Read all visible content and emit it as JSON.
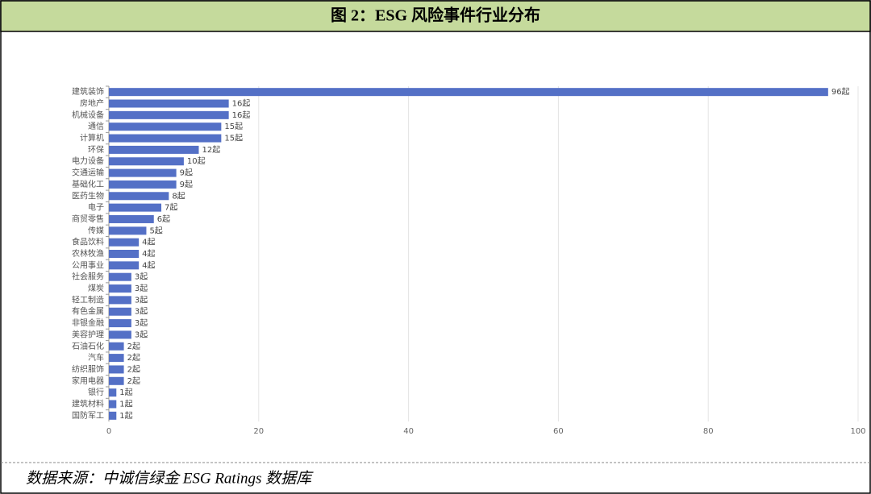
{
  "chart_data": {
    "type": "bar",
    "orientation": "horizontal",
    "title": "图 2：ESG 风险事件行业分布",
    "source": "数据来源：中诚信绿金 ESG Ratings 数据库",
    "categories": [
      "建筑装饰",
      "房地产",
      "机械设备",
      "通信",
      "计算机",
      "环保",
      "电力设备",
      "交通运输",
      "基础化工",
      "医药生物",
      "电子",
      "商贸零售",
      "传媒",
      "食品饮料",
      "农林牧渔",
      "公用事业",
      "社会服务",
      "煤炭",
      "轻工制造",
      "有色金属",
      "非银金融",
      "美容护理",
      "石油石化",
      "汽车",
      "纺织服饰",
      "家用电器",
      "银行",
      "建筑材料",
      "国防军工"
    ],
    "values": [
      96,
      16,
      16,
      15,
      15,
      12,
      10,
      9,
      9,
      8,
      7,
      6,
      5,
      4,
      4,
      4,
      3,
      3,
      3,
      3,
      3,
      3,
      2,
      2,
      2,
      2,
      1,
      1,
      1
    ],
    "value_labels": [
      "96起",
      "16起",
      "16起",
      "15起",
      "15起",
      "12起",
      "10起",
      "9起",
      "9起",
      "8起",
      "7起",
      "6起",
      "5起",
      "4起",
      "4起",
      "4起",
      "3起",
      "3起",
      "3起",
      "3起",
      "3起",
      "3起",
      "2起",
      "2起",
      "2起",
      "2起",
      "1起",
      "1起",
      "1起"
    ],
    "color": "#5470c6",
    "xlim": [
      0,
      100
    ],
    "xticks": [
      0,
      20,
      40,
      60,
      80,
      100
    ],
    "grid": true
  }
}
